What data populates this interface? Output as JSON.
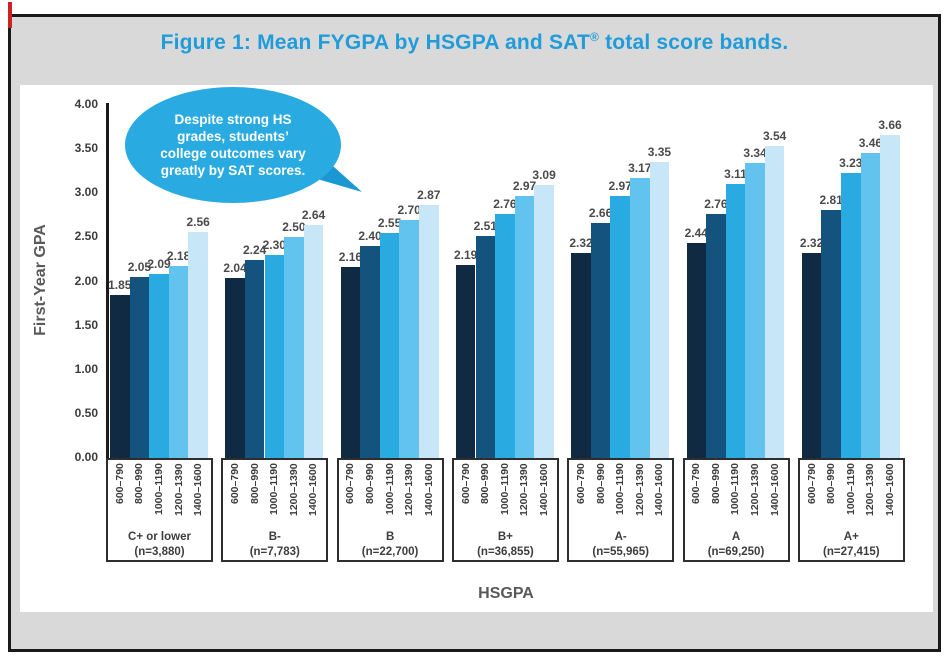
{
  "header": {
    "title_prefix": "Figure 1: Mean FYGPA by HSGPA and SAT",
    "title_reg": "®",
    "title_suffix": " total score bands."
  },
  "callout": {
    "lines": [
      "Despite strong HS",
      "grades, students’",
      "college  outcomes vary",
      "greatly by SAT scores."
    ]
  },
  "axes": {
    "y_title": "First-Year GPA",
    "x_title": "HSGPA"
  },
  "colors": {
    "title_blue": "#1f9cd9",
    "frame_bg": "#d9d9d9",
    "panel_bg": "#ffffff",
    "callout_bg": "#29abe2",
    "callout_tail": "#1b97d4",
    "axis_text_gray": "#595959",
    "value_label_gray": "#4a4a4a",
    "artifact_red": "#cc2222",
    "bar_colors": [
      "#102a43",
      "#15537f",
      "#29abe2",
      "#63c3ef",
      "#c7e6f8"
    ]
  },
  "chart_data": {
    "type": "bar",
    "title": "Figure 1: Mean FYGPA by HSGPA and SAT® total score bands.",
    "xlabel": "HSGPA",
    "ylabel": "First-Year GPA",
    "ylim": [
      0,
      4.0
    ],
    "grid": false,
    "legend": "none (series identified by rotated SAT band tick labels under each group)",
    "series_note": "5 bars per group = SAT total score bands, darkest to lightest",
    "band_labels": [
      "600–790",
      "800–990",
      "1000–1190",
      "1200–1390",
      "1400–1600"
    ],
    "yticks": [
      "0.00",
      "0.50",
      "1.00",
      "1.50",
      "2.00",
      "2.50",
      "3.00",
      "3.50",
      "4.00"
    ],
    "groups": [
      {
        "label": "C+ or lower",
        "n": "(n=3,880)",
        "values": [
          1.85,
          2.05,
          2.09,
          2.18,
          2.56
        ]
      },
      {
        "label": "B-",
        "n": "(n=7,783)",
        "values": [
          2.04,
          2.24,
          2.3,
          2.5,
          2.64
        ]
      },
      {
        "label": "B",
        "n": "(n=22,700)",
        "values": [
          2.16,
          2.4,
          2.55,
          2.7,
          2.87
        ]
      },
      {
        "label": "B+",
        "n": "(n=36,855)",
        "values": [
          2.19,
          2.51,
          2.76,
          2.97,
          3.09
        ]
      },
      {
        "label": "A-",
        "n": "(n=55,965)",
        "values": [
          2.32,
          2.66,
          2.97,
          3.17,
          3.35
        ]
      },
      {
        "label": "A",
        "n": "(n=69,250)",
        "values": [
          2.44,
          2.76,
          3.11,
          3.34,
          3.54
        ]
      },
      {
        "label": "A+",
        "n": "(n=27,415)",
        "values": [
          2.32,
          2.81,
          3.23,
          3.46,
          3.66
        ]
      }
    ]
  }
}
